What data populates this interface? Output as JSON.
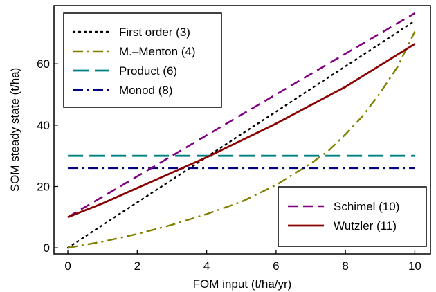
{
  "chart_data": {
    "type": "line",
    "title": "",
    "xlabel": "FOM input (t/ha/yr)",
    "ylabel": "SOM steady state (t/ha)",
    "xlim": [
      -0.4,
      10.45
    ],
    "ylim": [
      -2,
      79
    ],
    "x_ticks": [
      0,
      2,
      4,
      6,
      8,
      10
    ],
    "y_ticks": [
      0,
      20,
      40,
      60
    ],
    "grid": false,
    "legends": [
      {
        "placement": "top-left",
        "entries": [
          "First order (3)",
          "M.–Menton (4)",
          "Product (6)",
          "Monod (8)"
        ]
      },
      {
        "placement": "bottom-right",
        "entries": [
          "Schimel (10)",
          "Wutzler (11)"
        ]
      }
    ],
    "series": [
      {
        "name": "First order (3)",
        "color": "#000000",
        "dash": "dotted",
        "x": [
          0,
          1,
          2,
          3,
          4,
          5,
          6,
          7,
          8,
          9,
          10
        ],
        "y": [
          0,
          7.4,
          14.8,
          22.2,
          29.6,
          37,
          44.4,
          51.8,
          59.2,
          66.6,
          74
        ]
      },
      {
        "name": "M.–Menton (4)",
        "color": "#808000",
        "dash": "dashdot",
        "x": [
          0,
          1,
          2,
          3,
          4,
          5,
          6,
          7,
          7.5,
          8,
          8.5,
          9,
          9.5,
          10
        ],
        "y": [
          0,
          2,
          4.5,
          7.5,
          11,
          15,
          20.5,
          27.5,
          31.5,
          37,
          43,
          50.5,
          59,
          70.5
        ]
      },
      {
        "name": "Product (6)",
        "color": "#008080",
        "dash": "longdash",
        "x": [
          0,
          10
        ],
        "y": [
          30,
          30
        ]
      },
      {
        "name": "Monod (8)",
        "color": "#000080",
        "dash": "dashdot",
        "x": [
          0,
          10
        ],
        "y": [
          26,
          26
        ]
      },
      {
        "name": "Schimel (10)",
        "color": "#800080",
        "dash": "dashed",
        "x": [
          0,
          2,
          4,
          6,
          8,
          10
        ],
        "y": [
          10,
          23.3,
          36.7,
          50,
          63.3,
          76.5
        ]
      },
      {
        "name": "Wutzler (11)",
        "color": "#8b0000",
        "dash": "solid",
        "x": [
          0,
          1,
          2,
          3,
          4,
          5,
          6,
          7,
          8,
          9,
          10
        ],
        "y": [
          10,
          14.5,
          19.5,
          24.5,
          29.5,
          35,
          40.5,
          46.5,
          52.5,
          59.5,
          66.5
        ]
      }
    ]
  }
}
